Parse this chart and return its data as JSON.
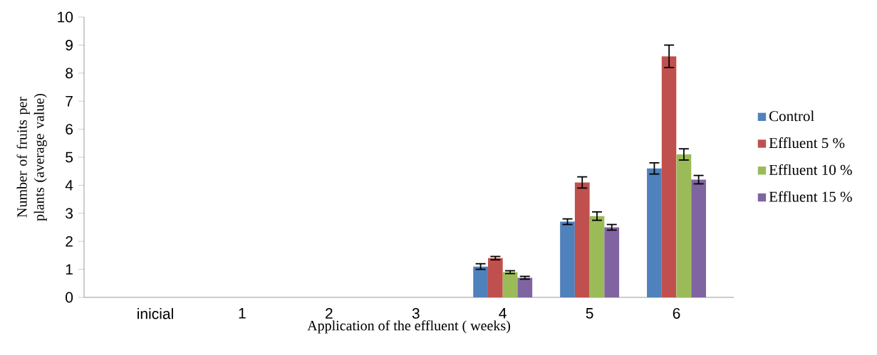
{
  "chart_data": {
    "type": "bar",
    "xlabel": "Application of the effluent ( weeks)",
    "ylabel": "Number of fruits per plants (average value)",
    "categories": [
      "inicial",
      "1",
      "2",
      "3",
      "4",
      "5",
      "6"
    ],
    "series": [
      {
        "name": "Control",
        "color": "#4f81bd",
        "values": [
          0,
          0,
          0,
          0,
          1.1,
          2.7,
          4.6
        ],
        "errors": [
          null,
          null,
          null,
          null,
          0.1,
          0.1,
          0.2
        ]
      },
      {
        "name": "Effluent 5 %",
        "color": "#c0504d",
        "values": [
          0,
          0,
          0,
          0,
          1.4,
          4.1,
          8.6
        ],
        "errors": [
          null,
          null,
          null,
          null,
          0.06,
          0.2,
          0.4
        ]
      },
      {
        "name": "Effluent 10 %",
        "color": "#9bbb59",
        "values": [
          0,
          0,
          0,
          0,
          0.9,
          2.9,
          5.1
        ],
        "errors": [
          null,
          null,
          null,
          null,
          0.05,
          0.15,
          0.2
        ]
      },
      {
        "name": "Effluent 15 %",
        "color": "#8064a2",
        "values": [
          0,
          0,
          0,
          0,
          0.7,
          2.5,
          4.2
        ],
        "errors": [
          null,
          null,
          null,
          null,
          0.05,
          0.1,
          0.15
        ]
      }
    ],
    "ylim": [
      0,
      10
    ],
    "yticks": [
      0,
      1,
      2,
      3,
      4,
      5,
      6,
      7,
      8,
      9,
      10
    ],
    "grid": false,
    "legend": "right"
  }
}
